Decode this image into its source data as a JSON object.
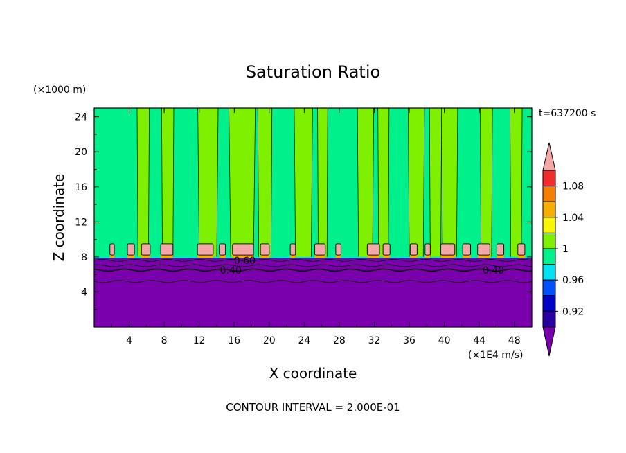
{
  "chart_data": {
    "type": "heatmap",
    "title": "Saturation Ratio",
    "xlabel": "X coordinate",
    "ylabel": "Z coordinate",
    "x_unit": "(×1E4 m/s)",
    "y_unit": "(×1000 m)",
    "time_label": "t=637200 s",
    "footer": "CONTOUR INTERVAL = 2.000E-01",
    "xlim": [
      0,
      50
    ],
    "ylim": [
      0,
      25
    ],
    "x_ticks": [
      4,
      8,
      12,
      16,
      20,
      24,
      28,
      32,
      36,
      40,
      44,
      48
    ],
    "y_ticks": [
      4,
      8,
      12,
      16,
      20,
      24
    ],
    "contour_labels": [
      {
        "text": "0.60",
        "x": 17.2,
        "y": 7.6
      },
      {
        "text": "0.40",
        "x": 15.6,
        "y": 6.5
      },
      {
        "text": "0.40",
        "x": 45.6,
        "y": 6.5
      }
    ],
    "colorbar": {
      "labels": [
        "1.08",
        "1.04",
        "1",
        "0.96",
        "0.92"
      ],
      "levels": [
        1.1,
        1.08,
        1.06,
        1.04,
        1.02,
        1.0,
        0.98,
        0.96,
        0.94,
        0.92
      ],
      "colors": [
        "#f3a7a7",
        "#f22b2b",
        "#f77f00",
        "#f7ae00",
        "#f7f700",
        "#7ef000",
        "#00f08c",
        "#00e2f2",
        "#0050ff",
        "#0000c8",
        "#2b00a0",
        "#7a00ad"
      ]
    },
    "regions": {
      "dry_layer_top_z": 7.9,
      "dry_color": "#7a00ad",
      "background_color": "#00f08c",
      "column_color": "#7ef000",
      "cap_color": "#f3a7a7",
      "columns": [
        {
          "x0": 5.0,
          "x1": 6.2
        },
        {
          "x0": 7.8,
          "x1": 9.0
        },
        {
          "x0": 12.0,
          "x1": 14.0
        },
        {
          "x0": 15.6,
          "x1": 18.2
        },
        {
          "x0": 18.8,
          "x1": 20.2
        },
        {
          "x0": 23.0,
          "x1": 24.8
        },
        {
          "x0": 25.6,
          "x1": 26.6
        },
        {
          "x0": 30.2,
          "x1": 31.8
        },
        {
          "x0": 32.5,
          "x1": 33.6
        },
        {
          "x0": 36.0,
          "x1": 37.6
        },
        {
          "x0": 38.4,
          "x1": 39.6
        },
        {
          "x0": 39.8,
          "x1": 41.4
        },
        {
          "x0": 44.2,
          "x1": 45.4
        },
        {
          "x0": 47.6,
          "x1": 48.8
        }
      ],
      "caps": [
        {
          "x0": 1.8,
          "x1": 2.3
        },
        {
          "x0": 3.8,
          "x1": 4.6
        },
        {
          "x0": 5.4,
          "x1": 6.4
        },
        {
          "x0": 7.6,
          "x1": 9.0
        },
        {
          "x0": 11.8,
          "x1": 13.6
        },
        {
          "x0": 14.3,
          "x1": 15.0
        },
        {
          "x0": 15.8,
          "x1": 18.2
        },
        {
          "x0": 19.0,
          "x1": 20.0
        },
        {
          "x0": 22.4,
          "x1": 23.0
        },
        {
          "x0": 25.2,
          "x1": 26.4
        },
        {
          "x0": 27.6,
          "x1": 28.2
        },
        {
          "x0": 31.2,
          "x1": 32.6
        },
        {
          "x0": 33.0,
          "x1": 33.8
        },
        {
          "x0": 36.1,
          "x1": 36.9
        },
        {
          "x0": 37.8,
          "x1": 38.4
        },
        {
          "x0": 39.6,
          "x1": 41.2
        },
        {
          "x0": 42.1,
          "x1": 43.0
        },
        {
          "x0": 43.8,
          "x1": 45.2
        },
        {
          "x0": 46.0,
          "x1": 46.8
        },
        {
          "x0": 48.4,
          "x1": 49.2
        }
      ]
    }
  }
}
